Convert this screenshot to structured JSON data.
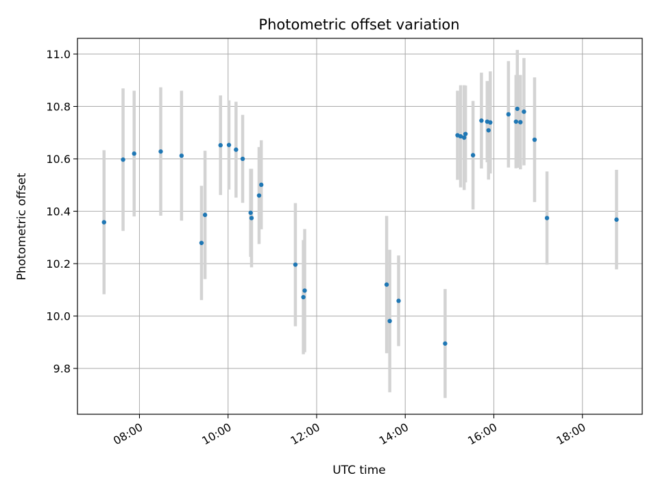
{
  "chart_data": {
    "type": "scatter",
    "title": "Photometric offset variation",
    "xlabel": "UTC time",
    "ylabel": "Photometric offset",
    "x_unit": "hours (UTC)",
    "xlim": [
      6.6,
      19.35
    ],
    "ylim": [
      9.625,
      11.06
    ],
    "x_ticks": [
      {
        "value": 8,
        "label": "08:00"
      },
      {
        "value": 10,
        "label": "10:00"
      },
      {
        "value": 12,
        "label": "12:00"
      },
      {
        "value": 14,
        "label": "14:00"
      },
      {
        "value": 16,
        "label": "16:00"
      },
      {
        "value": 18,
        "label": "18:00"
      }
    ],
    "y_ticks": [
      {
        "value": 9.8,
        "label": "9.8"
      },
      {
        "value": 10.0,
        "label": "10.0"
      },
      {
        "value": 10.2,
        "label": "10.2"
      },
      {
        "value": 10.4,
        "label": "10.4"
      },
      {
        "value": 10.6,
        "label": "10.6"
      },
      {
        "value": 10.8,
        "label": "10.8"
      },
      {
        "value": 11.0,
        "label": "11.0"
      }
    ],
    "grid": true,
    "colors": {
      "point": "#1f77b4",
      "errorbar": "#d3d3d3",
      "grid": "#b0b0b0"
    },
    "points": [
      {
        "x": 7.2,
        "y": 10.358,
        "err": 0.275
      },
      {
        "x": 7.63,
        "y": 10.597,
        "err": 0.272
      },
      {
        "x": 7.88,
        "y": 10.62,
        "err": 0.24
      },
      {
        "x": 8.48,
        "y": 10.628,
        "err": 0.245
      },
      {
        "x": 8.95,
        "y": 10.612,
        "err": 0.248
      },
      {
        "x": 9.4,
        "y": 10.279,
        "err": 0.218
      },
      {
        "x": 9.48,
        "y": 10.386,
        "err": 0.245
      },
      {
        "x": 9.83,
        "y": 10.652,
        "err": 0.19
      },
      {
        "x": 10.02,
        "y": 10.653,
        "err": 0.17
      },
      {
        "x": 10.18,
        "y": 10.635,
        "err": 0.183
      },
      {
        "x": 10.33,
        "y": 10.6,
        "err": 0.168
      },
      {
        "x": 10.51,
        "y": 10.394,
        "err": 0.168
      },
      {
        "x": 10.53,
        "y": 10.374,
        "err": 0.188
      },
      {
        "x": 10.7,
        "y": 10.46,
        "err": 0.185
      },
      {
        "x": 10.75,
        "y": 10.501,
        "err": 0.17
      },
      {
        "x": 11.52,
        "y": 10.196,
        "err": 0.235
      },
      {
        "x": 11.7,
        "y": 10.072,
        "err": 0.218
      },
      {
        "x": 11.73,
        "y": 10.097,
        "err": 0.235
      },
      {
        "x": 13.58,
        "y": 10.12,
        "err": 0.262
      },
      {
        "x": 13.65,
        "y": 9.981,
        "err": 0.272
      },
      {
        "x": 13.85,
        "y": 10.058,
        "err": 0.173
      },
      {
        "x": 14.9,
        "y": 9.895,
        "err": 0.208
      },
      {
        "x": 15.18,
        "y": 10.69,
        "err": 0.17
      },
      {
        "x": 15.25,
        "y": 10.686,
        "err": 0.195
      },
      {
        "x": 15.33,
        "y": 10.681,
        "err": 0.2
      },
      {
        "x": 15.36,
        "y": 10.695,
        "err": 0.185
      },
      {
        "x": 15.53,
        "y": 10.614,
        "err": 0.207
      },
      {
        "x": 15.72,
        "y": 10.746,
        "err": 0.183
      },
      {
        "x": 15.85,
        "y": 10.742,
        "err": 0.155
      },
      {
        "x": 15.88,
        "y": 10.709,
        "err": 0.188
      },
      {
        "x": 15.92,
        "y": 10.739,
        "err": 0.195
      },
      {
        "x": 16.33,
        "y": 10.77,
        "err": 0.203
      },
      {
        "x": 16.5,
        "y": 10.742,
        "err": 0.178
      },
      {
        "x": 16.53,
        "y": 10.791,
        "err": 0.225
      },
      {
        "x": 16.6,
        "y": 10.74,
        "err": 0.18
      },
      {
        "x": 16.68,
        "y": 10.78,
        "err": 0.205
      },
      {
        "x": 16.92,
        "y": 10.673,
        "err": 0.238
      },
      {
        "x": 17.2,
        "y": 10.374,
        "err": 0.178
      },
      {
        "x": 18.77,
        "y": 10.368,
        "err": 0.19
      }
    ]
  }
}
